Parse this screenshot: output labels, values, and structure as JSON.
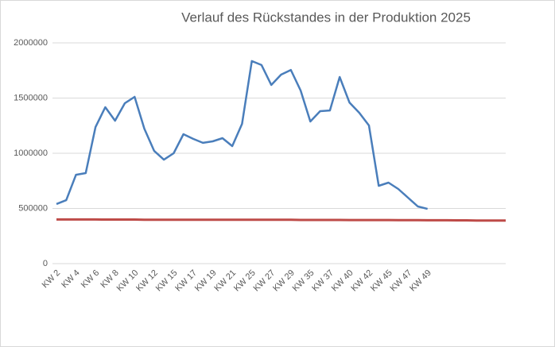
{
  "chart_data": {
    "type": "line",
    "title": "Verlauf des Rückstandes in der Produktion 2025",
    "categories": [
      "KW 2",
      null,
      "KW 4",
      null,
      "KW 6",
      null,
      "KW 8",
      null,
      "KW 10",
      null,
      "KW 12",
      null,
      "KW 15",
      null,
      "KW 17",
      null,
      "KW 19",
      null,
      "KW 21",
      null,
      "KW 25",
      null,
      "KW 27",
      null,
      "KW 29",
      null,
      "KW 35",
      null,
      "KW 37",
      null,
      "KW 40",
      null,
      "KW 42",
      null,
      "KW 45",
      null,
      "KW 47",
      null,
      "KW 49",
      null,
      null,
      null,
      null,
      null,
      null,
      null,
      null
    ],
    "series": [
      {
        "color": "#4a7ebb",
        "values": [
          540000,
          575000,
          805000,
          820000,
          1237000,
          1417000,
          1295000,
          1453000,
          1511000,
          1223000,
          1022000,
          942000,
          1000000,
          1173000,
          1130000,
          1094000,
          1108000,
          1137000,
          1065000,
          1266000,
          1835000,
          1799000,
          1619000,
          1712000,
          1755000,
          1568000,
          1288000,
          1381000,
          1388000,
          1691000,
          1460000,
          1367000,
          1252000,
          705000,
          734000,
          676000,
          597000,
          518000,
          496000,
          null,
          null,
          null,
          null,
          null,
          null,
          null,
          null
        ]
      },
      {
        "color": "#be4b48",
        "values": [
          400000,
          400000,
          400000,
          400000,
          400000,
          399000,
          399000,
          399000,
          399000,
          398000,
          398000,
          398000,
          398000,
          398000,
          398000,
          398000,
          398000,
          398000,
          398000,
          398000,
          397000,
          397000,
          397000,
          397000,
          397000,
          396000,
          396000,
          396000,
          396000,
          396000,
          395000,
          395000,
          395000,
          395000,
          395000,
          394000,
          394000,
          394000,
          393000,
          393000,
          393000,
          392000,
          392000,
          391000,
          391000,
          390000,
          390000
        ]
      }
    ],
    "ylim": [
      0,
      2000000
    ],
    "yticks": [
      0,
      500000,
      1000000,
      1500000,
      2000000
    ],
    "grid": true
  }
}
